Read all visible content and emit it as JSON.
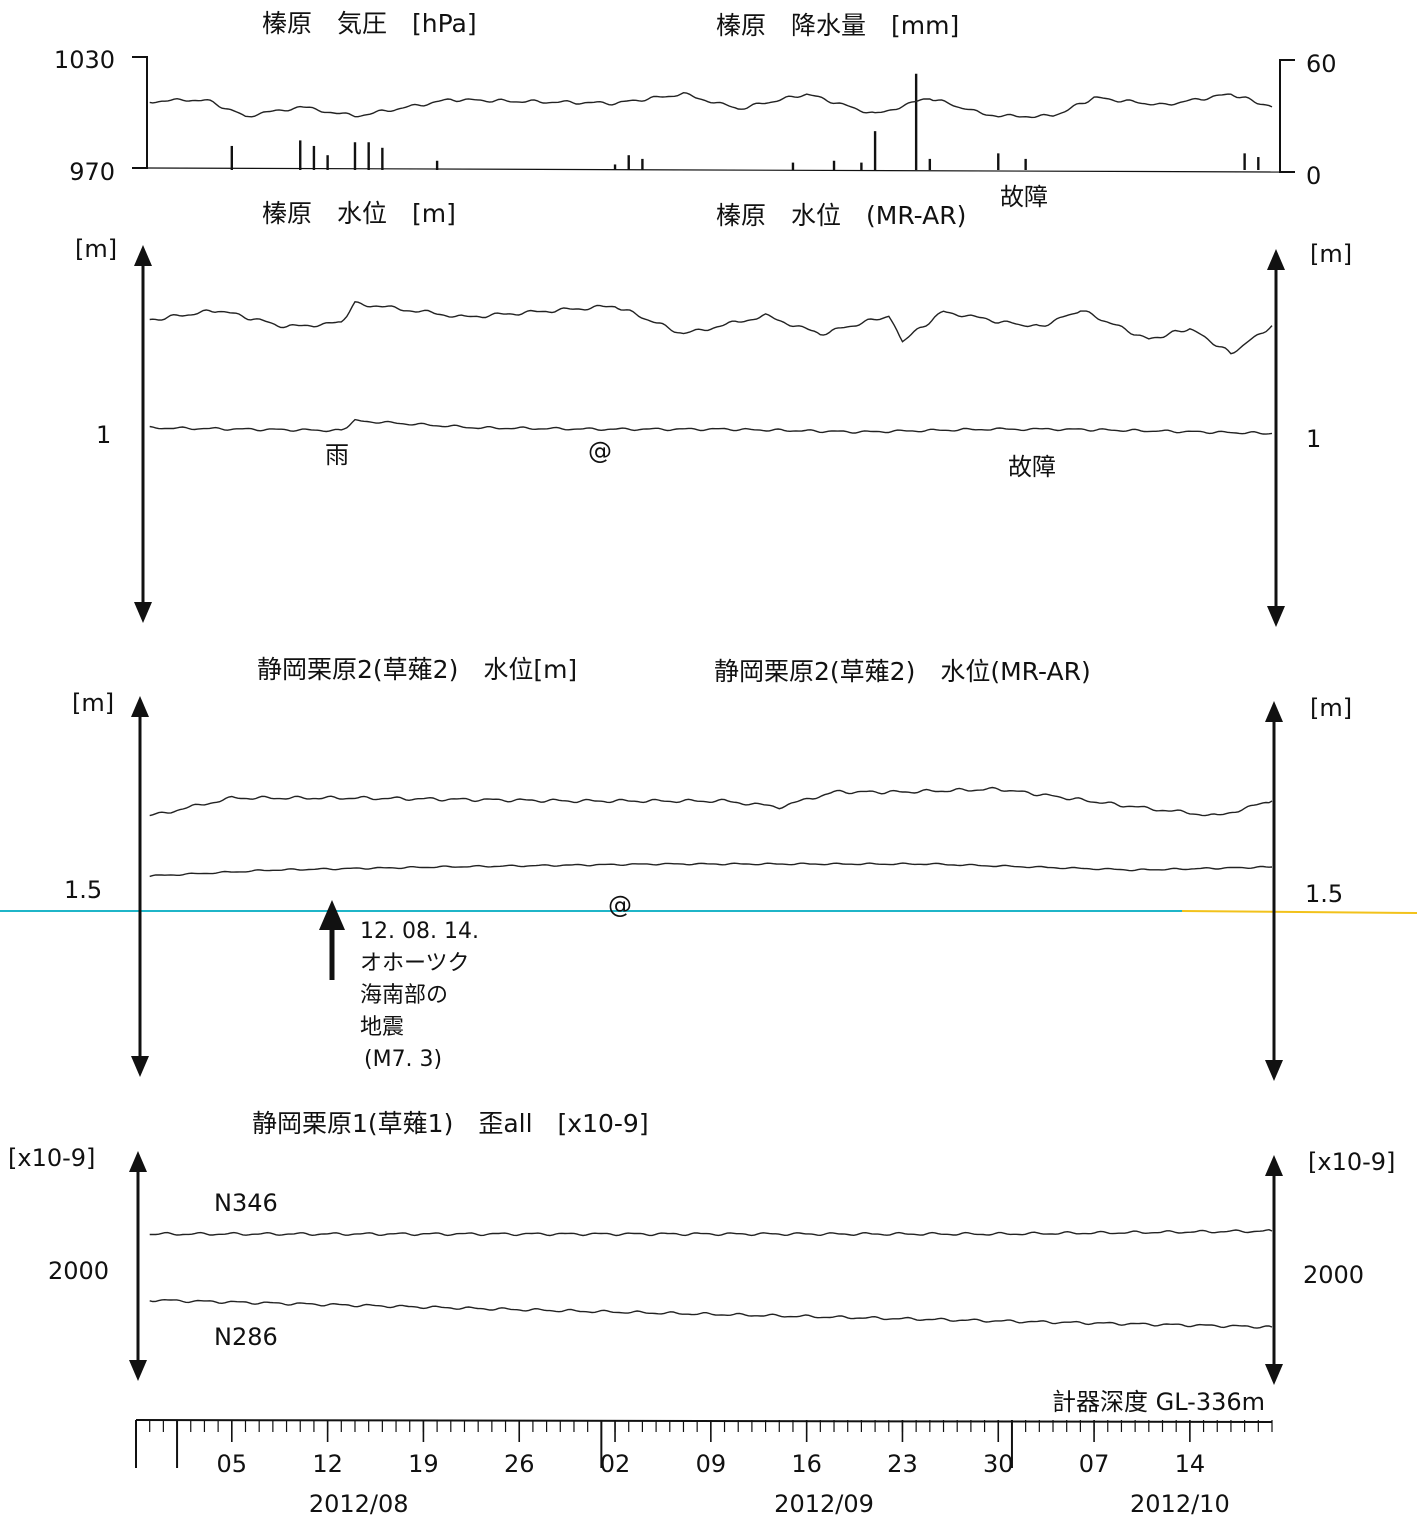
{
  "chart_data": {
    "type": "line",
    "x_axis": {
      "start": "2012-07-29",
      "end": "2012-10-20",
      "day_ticks": [
        "05",
        "12",
        "19",
        "26",
        "02",
        "09",
        "16",
        "23",
        "30",
        "07",
        "14"
      ],
      "day_tick_dates": [
        "2012-08-05",
        "2012-08-12",
        "2012-08-19",
        "2012-08-26",
        "2012-09-02",
        "2012-09-09",
        "2012-09-16",
        "2012-09-23",
        "2012-09-30",
        "2012-10-07",
        "2012-10-14"
      ],
      "months": [
        "2012/08",
        "2012/09",
        "2012/10"
      ],
      "month_dates": [
        "2012-08-01",
        "2012-09-01",
        "2012-10-01"
      ],
      "month_label_dates": [
        "2012-08-15",
        "2012-09-18",
        "2012-10-14"
      ]
    },
    "panels": [
      {
        "titles": [
          "榛原　気圧　[hPa]",
          "榛原　降水量　[mm]"
        ],
        "left_axis": {
          "ticks": [
            "1030",
            "970"
          ],
          "range": [
            970,
            1030
          ]
        },
        "right_axis": {
          "ticks": [
            "60",
            "0"
          ],
          "range": [
            0,
            60
          ]
        },
        "series": [
          {
            "type": "line",
            "x": [
              "2012-07-30",
              "2012-08-03",
              "2012-08-06",
              "2012-08-10",
              "2012-08-14",
              "2012-08-21",
              "2012-08-26",
              "2012-09-02",
              "2012-09-07",
              "2012-09-11",
              "2012-09-16",
              "2012-09-21",
              "2012-09-25",
              "2012-09-28",
              "2012-09-30",
              "2012-10-04",
              "2012-10-07",
              "2012-10-12",
              "2012-10-17",
              "2012-10-20"
            ],
            "y": [
              1006,
              1007,
              998,
              1003,
              998,
              1007,
              1006,
              1005,
              1010,
              1002,
              1010,
              999,
              1008,
              1001,
              998,
              998,
              1008,
              1004,
              1010,
              1003
            ]
          },
          {
            "type": "bar",
            "x": [
              "2012-08-05",
              "2012-08-10",
              "2012-08-11",
              "2012-08-12",
              "2012-08-14",
              "2012-08-15",
              "2012-08-16",
              "2012-08-20",
              "2012-09-02",
              "2012-09-03",
              "2012-09-04",
              "2012-09-15",
              "2012-09-18",
              "2012-09-20",
              "2012-09-21",
              "2012-09-24",
              "2012-09-25",
              "2012-09-30",
              "2012-10-02",
              "2012-10-18",
              "2012-10-19"
            ],
            "y": [
              13,
              16,
              13,
              8,
              15,
              15,
              12,
              5,
              3,
              8,
              6,
              4,
              5,
              4,
              21,
              52,
              6,
              9,
              6,
              9,
              7
            ]
          }
        ],
        "annotations": [
          {
            "text": "故障",
            "x": "2012-09-30"
          }
        ]
      },
      {
        "titles": [
          "榛原　水位　[m]",
          "榛原　水位　(MR-AR)"
        ],
        "left_axis": {
          "unit": "[m]",
          "ticks": [
            "1"
          ],
          "scale_m": 1
        },
        "right_axis": {
          "unit": "[m]",
          "ticks": [
            "1"
          ],
          "scale_m": 1
        },
        "series": [
          {
            "name": "水位",
            "x": [
              "2012-07-30",
              "2012-08-04",
              "2012-08-09",
              "2012-08-13",
              "2012-08-14",
              "2012-08-22",
              "2012-09-02",
              "2012-09-07",
              "2012-09-13",
              "2012-09-17",
              "2012-09-22",
              "2012-09-23",
              "2012-09-26",
              "2012-09-30",
              "2012-10-03",
              "2012-10-06",
              "2012-10-11",
              "2012-10-14",
              "2012-10-17",
              "2012-10-20"
            ],
            "y": [
              1.8,
              1.87,
              1.75,
              1.78,
              1.92,
              1.82,
              1.9,
              1.7,
              1.83,
              1.7,
              1.83,
              1.65,
              1.86,
              1.79,
              1.75,
              1.87,
              1.66,
              1.74,
              1.56,
              1.76
            ]
          },
          {
            "name": "水位 (MR-AR)",
            "x": [
              "2012-07-30",
              "2012-08-13",
              "2012-08-14",
              "2012-08-23",
              "2012-09-01",
              "2012-09-10",
              "2012-09-20",
              "2012-09-29",
              "2012-10-05",
              "2012-10-15",
              "2012-10-20"
            ],
            "y": [
              1.03,
              1.01,
              1.08,
              1.03,
              1.02,
              1.02,
              1.0,
              1.02,
              1.02,
              1.0,
              0.99
            ]
          }
        ],
        "annotations": [
          {
            "text": "雨",
            "x": "2012-08-14"
          },
          {
            "text": "@",
            "x": "2012-09-02"
          },
          {
            "text": "故障",
            "x": "2012-09-30"
          }
        ]
      },
      {
        "titles": [
          "静岡栗原2(草薙2)　水位[m]",
          "静岡栗原2(草薙2)　水位(MR-AR)"
        ],
        "left_axis": {
          "unit": "[m]",
          "ticks": [
            "1.5"
          ],
          "scale_m": 1
        },
        "right_axis": {
          "unit": "[m]",
          "ticks": [
            "1.5"
          ],
          "scale_m": 1
        },
        "series": [
          {
            "name": "水位",
            "x": [
              "2012-07-30",
              "2012-08-05",
              "2012-08-14",
              "2012-08-30",
              "2012-09-10",
              "2012-09-14",
              "2012-09-18",
              "2012-09-23",
              "2012-09-30",
              "2012-10-05",
              "2012-10-10",
              "2012-10-16",
              "2012-10-20"
            ],
            "y": [
              1.74,
              1.8,
              1.8,
              1.79,
              1.79,
              1.77,
              1.82,
              1.82,
              1.83,
              1.8,
              1.77,
              1.74,
              1.79
            ]
          },
          {
            "name": "水位 (MR-AR)",
            "x": [
              "2012-07-30",
              "2012-08-08",
              "2012-08-20",
              "2012-09-05",
              "2012-09-25",
              "2012-10-10",
              "2012-10-20"
            ],
            "y": [
              1.54,
              1.56,
              1.57,
              1.58,
              1.58,
              1.56,
              1.57
            ]
          }
        ],
        "annotations": [
          {
            "text": "@",
            "x": "2012-09-04"
          },
          {
            "text": "12. 08. 14.",
            "x": "2012-08-14"
          },
          {
            "text": "オホーツク",
            "x": "2012-08-14"
          },
          {
            "text": "海南部の",
            "x": "2012-08-14"
          },
          {
            "text": "地震",
            "x": "2012-08-14"
          },
          {
            "text": "(M7. 3)",
            "x": "2012-08-14"
          }
        ]
      },
      {
        "titles": [
          "静岡栗原1(草薙1)　歪all　[x10-9]"
        ],
        "left_axis": {
          "unit": "[x10-9]",
          "ticks": [
            "2000"
          ],
          "scale": 2000
        },
        "right_axis": {
          "unit": "[x10-9]",
          "ticks": [
            "2000"
          ],
          "scale": 2000
        },
        "series": [
          {
            "name": "N346",
            "x": [
              "2012-07-30",
              "2012-08-30",
              "2012-09-30",
              "2012-10-20"
            ],
            "y": [
              2850,
              2850,
              2850,
              2880
            ]
          },
          {
            "name": "N286",
            "x": [
              "2012-07-30",
              "2012-08-30",
              "2012-09-30",
              "2012-10-20"
            ],
            "y": [
              2200,
              2090,
              1990,
              1930
            ]
          }
        ]
      }
    ],
    "footnote": "計器深度 GL-336m"
  }
}
